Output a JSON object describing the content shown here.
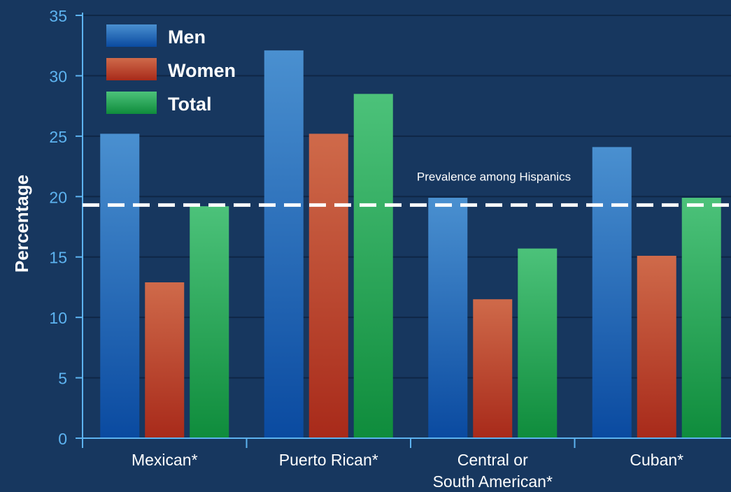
{
  "chart_data": {
    "type": "bar",
    "categories": [
      "Mexican*",
      "Puerto Rican*",
      "Central or\nSouth American*",
      "Cuban*"
    ],
    "series": [
      {
        "name": "Men",
        "values": [
          25.2,
          32.1,
          19.9,
          24.1
        ],
        "color": "#2f7fd0"
      },
      {
        "name": "Women",
        "values": [
          12.9,
          25.2,
          11.5,
          15.1
        ],
        "color": "#c9502a"
      },
      {
        "name": "Total",
        "values": [
          19.2,
          28.5,
          15.7,
          19.9
        ],
        "color": "#2fb55c"
      }
    ],
    "ylabel": "Percentage",
    "xlabel": "",
    "title": "",
    "ylim": [
      0,
      35
    ],
    "yticks": [
      0,
      5,
      10,
      15,
      20,
      25,
      30,
      35
    ],
    "grid": true,
    "legend": "top-left",
    "reference_line": {
      "value": 19.3,
      "label": "Prevalence among Hispanics"
    }
  },
  "colors": {
    "background": "#17375f",
    "axis": "#5db3f0",
    "grid": "#0f2746",
    "text": "#ffffff",
    "tick_text": "#5db3f0"
  }
}
